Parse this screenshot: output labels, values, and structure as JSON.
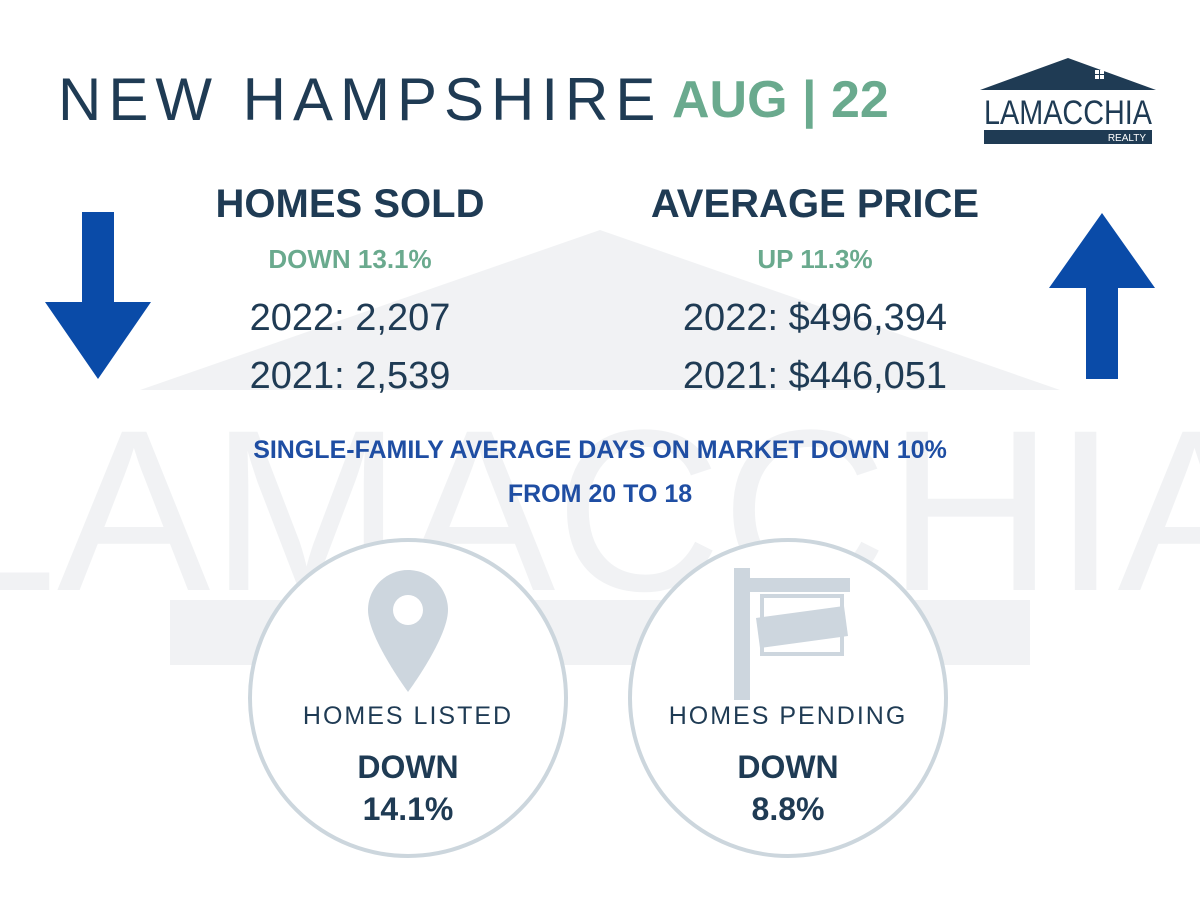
{
  "header": {
    "state": "NEW HAMPSHIRE",
    "date": "AUG | 22",
    "logo_name": "LAMACCHIA",
    "logo_sub": "REALTY"
  },
  "homes_sold": {
    "title": "HOMES SOLD",
    "change": "DOWN 13.1%",
    "value_2022": "2022: 2,207",
    "value_2021": "2021: 2,539",
    "arrow_icon": "arrow-down-icon"
  },
  "average_price": {
    "title": "AVERAGE PRICE",
    "change": "UP 11.3%",
    "value_2022": "2022: $496,394",
    "value_2021": "2021: $446,051",
    "arrow_icon": "arrow-up-icon"
  },
  "days_on_market": {
    "line1": "SINGLE-FAMILY AVERAGE DAYS ON MARKET DOWN 10%",
    "line2": "FROM 20 TO 18"
  },
  "homes_listed": {
    "label": "HOMES LISTED",
    "direction": "DOWN",
    "percent": "14.1%",
    "icon": "map-pin-icon"
  },
  "homes_pending": {
    "label": "HOMES PENDING",
    "direction": "DOWN",
    "percent": "8.8%",
    "icon": "for-sale-sign-icon"
  },
  "colors": {
    "navy": "#1f3b54",
    "green": "#6aaa8e",
    "blue_arrow": "#0a4ba8",
    "blue_text": "#1f4ea3",
    "icon_gray": "#cdd6de"
  }
}
